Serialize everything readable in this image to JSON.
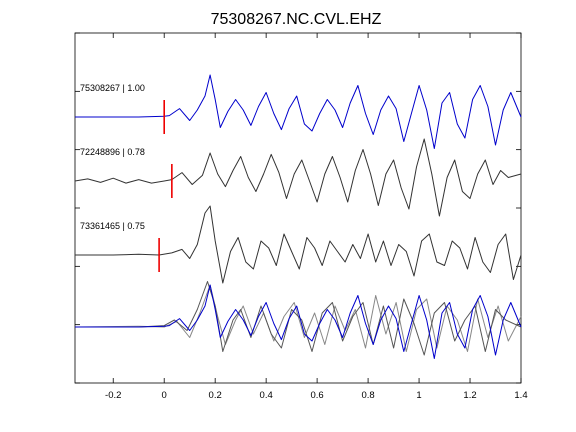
{
  "chart_data": {
    "type": "line",
    "title": "75308267.NC.CVL.EHZ",
    "xlabel": "",
    "ylabel": "",
    "xlim": [
      -0.35,
      1.4
    ],
    "x_ticks": [
      "-0.2",
      "0",
      "0.2",
      "0.4",
      "0.6",
      "0.8",
      "1",
      "1.2",
      "1.4"
    ],
    "x_tick_values": [
      -0.2,
      0,
      0.2,
      0.4,
      0.6,
      0.8,
      1.0,
      1.2,
      1.4
    ],
    "y_ticks_count": 7,
    "grid": false,
    "colors": {
      "primary": "#0000cc",
      "secondary": "#333333",
      "overlay": "#888888",
      "pick": "#ee0000"
    },
    "traces": [
      {
        "label": "75308267 | 1.00",
        "color": "#0000cc",
        "pick_time": 0.0,
        "x": [
          -0.35,
          -0.1,
          0.0,
          0.02,
          0.06,
          0.1,
          0.13,
          0.16,
          0.18,
          0.2,
          0.22,
          0.25,
          0.28,
          0.31,
          0.34,
          0.37,
          0.4,
          0.43,
          0.46,
          0.49,
          0.52,
          0.55,
          0.58,
          0.61,
          0.64,
          0.67,
          0.7,
          0.73,
          0.76,
          0.79,
          0.82,
          0.85,
          0.88,
          0.91,
          0.94,
          0.97,
          1.0,
          1.03,
          1.06,
          1.09,
          1.12,
          1.15,
          1.18,
          1.21,
          1.24,
          1.27,
          1.3,
          1.33,
          1.36,
          1.4
        ],
        "y": [
          0.0,
          0.0,
          0.01,
          0.02,
          0.12,
          -0.05,
          0.1,
          0.3,
          0.6,
          0.25,
          -0.15,
          0.08,
          0.25,
          0.1,
          -0.12,
          0.15,
          0.35,
          0.05,
          -0.18,
          0.12,
          0.3,
          -0.1,
          -0.2,
          0.05,
          0.25,
          0.1,
          -0.15,
          0.2,
          0.45,
          0.05,
          -0.25,
          0.1,
          0.3,
          0.12,
          -0.35,
          0.05,
          0.45,
          0.1,
          -0.45,
          0.2,
          0.35,
          -0.1,
          -0.3,
          0.25,
          0.45,
          0.15,
          -0.4,
          0.1,
          0.35,
          0.0
        ]
      },
      {
        "label": "72248896 | 0.78",
        "color": "#333333",
        "pick_time": 0.03,
        "x": [
          -0.35,
          -0.3,
          -0.25,
          -0.2,
          -0.15,
          -0.1,
          -0.05,
          0.0,
          0.03,
          0.07,
          0.11,
          0.15,
          0.18,
          0.21,
          0.24,
          0.27,
          0.3,
          0.33,
          0.36,
          0.39,
          0.42,
          0.45,
          0.48,
          0.51,
          0.54,
          0.57,
          0.6,
          0.63,
          0.66,
          0.69,
          0.72,
          0.75,
          0.78,
          0.81,
          0.84,
          0.87,
          0.9,
          0.93,
          0.96,
          0.99,
          1.02,
          1.05,
          1.08,
          1.11,
          1.14,
          1.17,
          1.2,
          1.23,
          1.26,
          1.29,
          1.32,
          1.35,
          1.4
        ],
        "y": [
          0.0,
          0.03,
          -0.02,
          0.04,
          -0.03,
          0.02,
          -0.03,
          0.0,
          0.02,
          0.12,
          -0.05,
          0.08,
          0.4,
          0.1,
          -0.08,
          0.15,
          0.35,
          0.05,
          -0.15,
          0.1,
          0.38,
          0.12,
          -0.25,
          0.1,
          0.3,
          0.0,
          -0.3,
          0.1,
          0.35,
          0.05,
          -0.3,
          0.15,
          0.45,
          0.1,
          -0.35,
          0.1,
          0.3,
          -0.1,
          -0.4,
          0.2,
          0.6,
          0.1,
          -0.5,
          0.05,
          0.3,
          -0.15,
          -0.25,
          0.1,
          0.3,
          -0.05,
          0.15,
          0.05,
          0.1
        ]
      },
      {
        "label": "73361465 | 0.75",
        "color": "#333333",
        "pick_time": -0.02,
        "x": [
          -0.35,
          -0.2,
          -0.1,
          -0.02,
          0.03,
          0.07,
          0.1,
          0.13,
          0.16,
          0.18,
          0.2,
          0.23,
          0.26,
          0.29,
          0.32,
          0.35,
          0.38,
          0.41,
          0.44,
          0.47,
          0.5,
          0.53,
          0.56,
          0.59,
          0.62,
          0.65,
          0.68,
          0.71,
          0.74,
          0.77,
          0.8,
          0.83,
          0.86,
          0.89,
          0.92,
          0.95,
          0.98,
          1.01,
          1.04,
          1.07,
          1.1,
          1.13,
          1.16,
          1.19,
          1.22,
          1.25,
          1.28,
          1.31,
          1.34,
          1.37,
          1.4
        ],
        "y": [
          0.0,
          0.0,
          0.01,
          0.0,
          0.03,
          0.08,
          -0.05,
          0.15,
          0.6,
          0.7,
          0.2,
          -0.4,
          0.05,
          0.25,
          -0.1,
          -0.2,
          0.2,
          0.1,
          -0.15,
          0.3,
          0.05,
          -0.2,
          0.25,
          0.1,
          -0.15,
          0.2,
          0.05,
          -0.1,
          0.15,
          -0.05,
          0.3,
          -0.1,
          0.2,
          -0.15,
          0.15,
          0.05,
          -0.3,
          0.2,
          0.3,
          -0.1,
          -0.15,
          0.2,
          0.1,
          -0.2,
          0.25,
          -0.1,
          -0.25,
          0.15,
          0.3,
          -0.35,
          0.0
        ]
      }
    ],
    "overlay": [
      {
        "color": "#888888",
        "x": [
          -0.35,
          -0.1,
          0.0,
          0.05,
          0.1,
          0.14,
          0.18,
          0.21,
          0.24,
          0.28,
          0.31,
          0.35,
          0.39,
          0.43,
          0.47,
          0.51,
          0.55,
          0.59,
          0.63,
          0.67,
          0.71,
          0.75,
          0.79,
          0.83,
          0.87,
          0.91,
          0.95,
          0.99,
          1.03,
          1.07,
          1.11,
          1.15,
          1.19,
          1.23,
          1.27,
          1.31,
          1.35,
          1.4
        ],
        "y": [
          0.0,
          0.01,
          0.0,
          0.08,
          -0.15,
          0.2,
          0.6,
          0.15,
          -0.25,
          0.1,
          0.3,
          -0.1,
          0.2,
          -0.2,
          0.15,
          0.35,
          -0.15,
          0.2,
          -0.25,
          0.3,
          -0.05,
          0.25,
          -0.3,
          0.45,
          -0.1,
          0.35,
          -0.35,
          0.25,
          0.4,
          -0.3,
          0.3,
          0.1,
          -0.35,
          0.4,
          -0.15,
          0.3,
          -0.2,
          0.15
        ]
      },
      {
        "color": "#555555",
        "x": [
          -0.35,
          -0.1,
          0.0,
          0.04,
          0.09,
          0.13,
          0.17,
          0.2,
          0.23,
          0.27,
          0.3,
          0.34,
          0.38,
          0.42,
          0.46,
          0.5,
          0.54,
          0.58,
          0.62,
          0.66,
          0.7,
          0.74,
          0.78,
          0.82,
          0.86,
          0.9,
          0.94,
          0.98,
          1.02,
          1.06,
          1.1,
          1.14,
          1.18,
          1.22,
          1.26,
          1.3,
          1.34,
          1.4
        ],
        "y": [
          0.0,
          0.0,
          0.02,
          0.1,
          -0.05,
          0.25,
          0.65,
          0.3,
          -0.35,
          0.1,
          0.25,
          -0.15,
          0.3,
          -0.1,
          -0.3,
          0.25,
          0.1,
          -0.35,
          0.2,
          0.35,
          -0.2,
          0.15,
          0.35,
          -0.25,
          0.3,
          -0.3,
          0.4,
          0.05,
          -0.4,
          0.2,
          0.35,
          -0.2,
          0.1,
          0.3,
          -0.35,
          0.25,
          0.1,
          0.0
        ]
      },
      {
        "color": "#0000cc",
        "x": [
          -0.35,
          -0.1,
          0.0,
          0.02,
          0.06,
          0.1,
          0.13,
          0.16,
          0.18,
          0.2,
          0.22,
          0.25,
          0.28,
          0.31,
          0.34,
          0.37,
          0.4,
          0.43,
          0.46,
          0.49,
          0.52,
          0.55,
          0.58,
          0.61,
          0.64,
          0.67,
          0.7,
          0.73,
          0.76,
          0.79,
          0.82,
          0.85,
          0.88,
          0.91,
          0.94,
          0.97,
          1.0,
          1.03,
          1.06,
          1.09,
          1.12,
          1.15,
          1.18,
          1.21,
          1.24,
          1.27,
          1.3,
          1.33,
          1.36,
          1.4
        ],
        "y": [
          0.0,
          0.0,
          0.01,
          0.02,
          0.12,
          -0.05,
          0.1,
          0.3,
          0.6,
          0.25,
          -0.15,
          0.08,
          0.25,
          0.1,
          -0.12,
          0.15,
          0.35,
          0.05,
          -0.18,
          0.12,
          0.3,
          -0.1,
          -0.2,
          0.05,
          0.25,
          0.1,
          -0.15,
          0.2,
          0.45,
          0.05,
          -0.25,
          0.1,
          0.3,
          0.12,
          -0.35,
          0.05,
          0.45,
          0.1,
          -0.45,
          0.2,
          0.35,
          -0.1,
          -0.3,
          0.25,
          0.45,
          0.15,
          -0.4,
          0.1,
          0.35,
          0.0
        ]
      }
    ]
  }
}
